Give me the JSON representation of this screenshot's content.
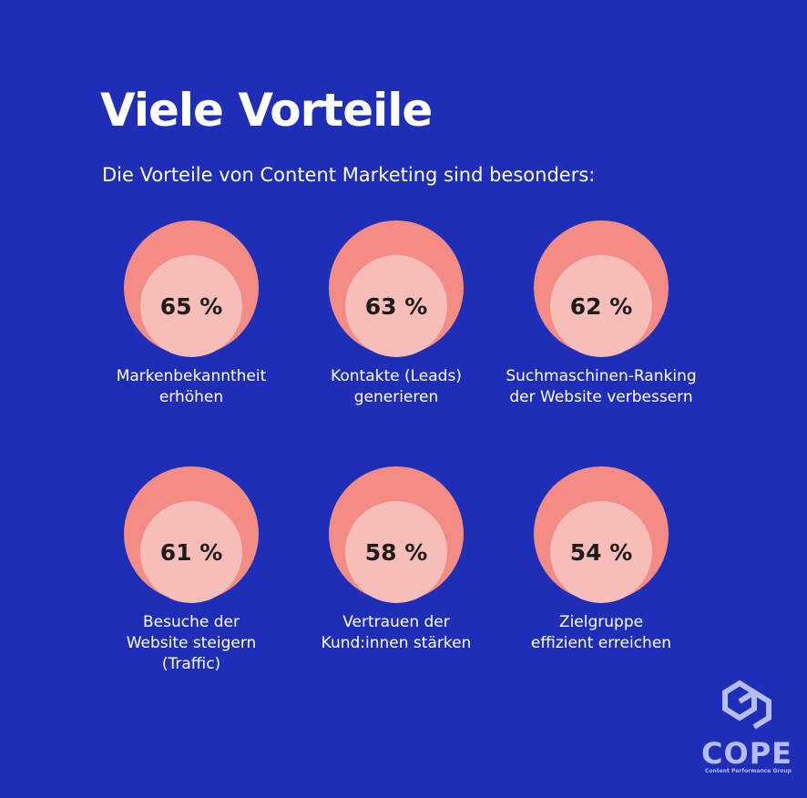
{
  "header": {
    "title": "Viele Vorteile",
    "subtitle": "Die Vorteile von Content Marketing sind besonders:"
  },
  "items": [
    {
      "value": "65 %",
      "label": [
        "Markenbekanntheit",
        "erhöhen"
      ]
    },
    {
      "value": "63 %",
      "label": [
        "Kontakte (Leads)",
        "generieren"
      ]
    },
    {
      "value": "62 %",
      "label": [
        "Suchmaschinen-Ranking",
        "der Website verbessern"
      ]
    },
    {
      "value": "61 %",
      "label": [
        "Besuche der",
        "Website steigern",
        "(Traffic)"
      ]
    },
    {
      "value": "58 %",
      "label": [
        "Vertrauen der",
        "Kund:innen stärken"
      ]
    },
    {
      "value": "54 %",
      "label": [
        "Zielgruppe",
        "effizient erreichen"
      ]
    }
  ],
  "logo": {
    "name": "COPE",
    "tagline": "Content Performance Group"
  }
}
